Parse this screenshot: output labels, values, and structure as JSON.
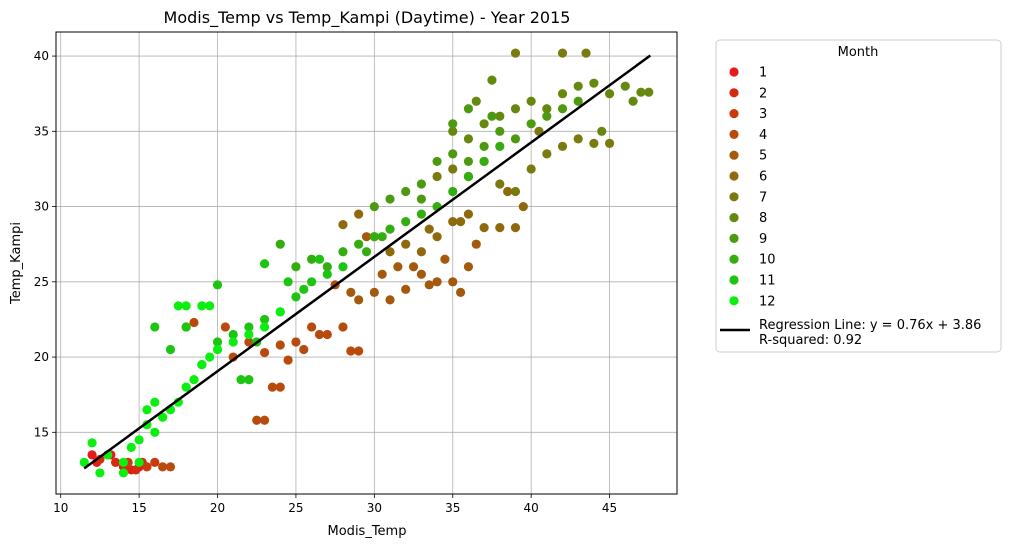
{
  "chart_data": {
    "type": "scatter",
    "title": "Modis_Temp vs Temp_Kampi (Daytime) - Year 2015",
    "xlabel": "Modis_Temp",
    "ylabel": "Temp_Kampi",
    "xlim": [
      9.7,
      49.3
    ],
    "ylim": [
      10.9,
      41.6
    ],
    "xticks": [
      10,
      15,
      20,
      25,
      30,
      35,
      40,
      45
    ],
    "yticks": [
      15,
      20,
      25,
      30,
      35,
      40
    ],
    "grid": true,
    "legend": {
      "title": "Month",
      "placement": "outside-right",
      "entries": [
        "1",
        "2",
        "3",
        "4",
        "5",
        "6",
        "7",
        "8",
        "9",
        "10",
        "11",
        "12"
      ],
      "colors": [
        "#e41a1c",
        "#d42b10",
        "#c93b0d",
        "#b84a0c",
        "#a45a0c",
        "#8f6a0d",
        "#7b7a0e",
        "#65890f",
        "#4d9a10",
        "#33ad10",
        "#1cc510",
        "#0aef10"
      ]
    },
    "regression": {
      "label": "Regression Line: y = 0.76x + 3.86\nR-squared: 0.92",
      "slope": 0.76,
      "intercept": 3.86,
      "x_range": [
        11.5,
        47.6
      ],
      "color": "#000000"
    },
    "series": [
      {
        "month": 1,
        "points": [
          [
            12.0,
            13.5
          ],
          [
            12.3,
            13.0
          ],
          [
            13.2,
            13.5
          ],
          [
            14.0,
            12.7
          ],
          [
            14.5,
            12.5
          ],
          [
            15.0,
            12.7
          ]
        ]
      },
      {
        "month": 2,
        "points": [
          [
            12.5,
            13.2
          ],
          [
            13.5,
            13.0
          ],
          [
            14.2,
            12.7
          ],
          [
            15.2,
            13.0
          ],
          [
            14.8,
            12.5
          ]
        ]
      },
      {
        "month": 3,
        "points": [
          [
            13.0,
            13.5
          ],
          [
            14.3,
            13.0
          ],
          [
            15.5,
            12.7
          ],
          [
            16.0,
            13.0
          ]
        ]
      },
      {
        "month": 4,
        "points": [
          [
            16.5,
            12.7
          ],
          [
            17.0,
            12.7
          ],
          [
            18.0,
            22.0
          ],
          [
            18.5,
            22.3
          ],
          [
            20.5,
            22.0
          ],
          [
            21.0,
            20.0
          ],
          [
            22.0,
            21.0
          ],
          [
            22.5,
            15.8
          ],
          [
            23.0,
            15.8
          ],
          [
            23.5,
            18.0
          ],
          [
            24.0,
            18.0
          ],
          [
            24.5,
            19.8
          ],
          [
            25.0,
            21.0
          ],
          [
            25.5,
            20.5
          ],
          [
            26.0,
            22.0
          ],
          [
            26.5,
            21.5
          ],
          [
            27.0,
            21.5
          ],
          [
            28.0,
            22.0
          ],
          [
            28.5,
            20.4
          ],
          [
            29.0,
            20.4
          ],
          [
            27.5,
            24.8
          ],
          [
            24.0,
            20.8
          ],
          [
            23.0,
            20.3
          ]
        ]
      },
      {
        "month": 5,
        "points": [
          [
            28.5,
            24.3
          ],
          [
            29.0,
            23.8
          ],
          [
            30.0,
            24.3
          ],
          [
            31.0,
            23.8
          ],
          [
            32.0,
            24.5
          ],
          [
            33.0,
            25.5
          ],
          [
            34.0,
            25.0
          ],
          [
            35.0,
            25.0
          ],
          [
            35.5,
            24.3
          ],
          [
            36.0,
            26.0
          ],
          [
            36.5,
            27.5
          ],
          [
            32.5,
            26.0
          ],
          [
            31.5,
            26.0
          ],
          [
            33.5,
            24.8
          ],
          [
            34.5,
            26.5
          ],
          [
            30.5,
            25.5
          ],
          [
            29.5,
            28.0
          ]
        ]
      },
      {
        "month": 6,
        "points": [
          [
            30.0,
            28.0
          ],
          [
            31.0,
            27.0
          ],
          [
            32.0,
            27.5
          ],
          [
            33.0,
            27.0
          ],
          [
            34.0,
            28.0
          ],
          [
            35.0,
            29.0
          ],
          [
            36.0,
            29.5
          ],
          [
            37.0,
            28.6
          ],
          [
            38.0,
            28.6
          ],
          [
            39.0,
            28.6
          ],
          [
            39.5,
            30.0
          ],
          [
            35.5,
            29.0
          ],
          [
            29.0,
            29.5
          ],
          [
            28.0,
            28.8
          ],
          [
            33.5,
            28.5
          ],
          [
            38.5,
            31.0
          ]
        ]
      },
      {
        "month": 7,
        "points": [
          [
            34.0,
            32.0
          ],
          [
            35.0,
            32.5
          ],
          [
            36.0,
            32.0
          ],
          [
            37.0,
            33.0
          ],
          [
            38.0,
            31.5
          ],
          [
            39.0,
            31.0
          ],
          [
            40.0,
            32.5
          ],
          [
            41.0,
            33.5
          ],
          [
            42.0,
            34.0
          ],
          [
            43.0,
            34.5
          ],
          [
            44.0,
            34.2
          ],
          [
            45.0,
            34.2
          ],
          [
            40.5,
            35.0
          ],
          [
            39.0,
            40.2
          ],
          [
            42.0,
            40.2
          ],
          [
            43.5,
            40.2
          ]
        ]
      },
      {
        "month": 8,
        "points": [
          [
            35.0,
            35.0
          ],
          [
            36.0,
            34.5
          ],
          [
            37.0,
            35.5
          ],
          [
            38.0,
            36.0
          ],
          [
            39.0,
            36.5
          ],
          [
            40.0,
            37.0
          ],
          [
            41.0,
            36.5
          ],
          [
            42.0,
            37.5
          ],
          [
            43.0,
            38.0
          ],
          [
            44.0,
            38.2
          ],
          [
            45.0,
            37.5
          ],
          [
            46.0,
            38.0
          ],
          [
            47.0,
            37.6
          ],
          [
            47.5,
            37.6
          ],
          [
            46.5,
            37.0
          ],
          [
            44.5,
            35.0
          ],
          [
            36.5,
            37.0
          ],
          [
            37.5,
            38.4
          ]
        ]
      },
      {
        "month": 9,
        "points": [
          [
            30.0,
            30.0
          ],
          [
            31.0,
            30.5
          ],
          [
            32.0,
            31.0
          ],
          [
            33.0,
            31.5
          ],
          [
            34.0,
            33.0
          ],
          [
            35.0,
            33.5
          ],
          [
            36.0,
            33.0
          ],
          [
            37.0,
            34.0
          ],
          [
            38.0,
            35.0
          ],
          [
            39.0,
            34.5
          ],
          [
            40.0,
            35.5
          ],
          [
            41.0,
            36.0
          ],
          [
            42.0,
            36.5
          ],
          [
            43.0,
            37.0
          ],
          [
            36.0,
            36.5
          ],
          [
            35.0,
            35.5
          ],
          [
            37.5,
            36.0
          ],
          [
            33.0,
            30.5
          ]
        ]
      },
      {
        "month": 10,
        "points": [
          [
            25.0,
            26.0
          ],
          [
            26.0,
            26.5
          ],
          [
            27.0,
            26.0
          ],
          [
            28.0,
            27.0
          ],
          [
            29.0,
            27.5
          ],
          [
            30.0,
            28.0
          ],
          [
            31.0,
            28.5
          ],
          [
            32.0,
            29.0
          ],
          [
            33.0,
            29.5
          ],
          [
            34.0,
            30.0
          ],
          [
            35.0,
            31.0
          ],
          [
            36.0,
            32.0
          ],
          [
            37.0,
            33.0
          ],
          [
            38.0,
            34.0
          ],
          [
            30.5,
            28.0
          ],
          [
            29.5,
            27.0
          ],
          [
            24.0,
            27.5
          ]
        ]
      },
      {
        "month": 11,
        "points": [
          [
            19.0,
            19.5
          ],
          [
            20.0,
            21.0
          ],
          [
            21.0,
            21.5
          ],
          [
            22.0,
            22.0
          ],
          [
            23.0,
            22.5
          ],
          [
            24.0,
            23.0
          ],
          [
            25.0,
            24.0
          ],
          [
            26.0,
            25.0
          ],
          [
            27.0,
            25.5
          ],
          [
            28.0,
            26.0
          ],
          [
            22.5,
            21.0
          ],
          [
            21.5,
            18.5
          ],
          [
            22.0,
            18.5
          ],
          [
            16.0,
            22.0
          ],
          [
            17.0,
            20.5
          ],
          [
            18.0,
            22.0
          ],
          [
            20.0,
            24.8
          ],
          [
            23.0,
            26.2
          ],
          [
            24.5,
            25.0
          ],
          [
            26.5,
            26.5
          ],
          [
            25.5,
            24.5
          ]
        ]
      },
      {
        "month": 12,
        "points": [
          [
            11.5,
            13.0
          ],
          [
            12.0,
            14.3
          ],
          [
            13.0,
            13.5
          ],
          [
            14.0,
            13.0
          ],
          [
            15.0,
            14.5
          ],
          [
            15.5,
            15.5
          ],
          [
            16.0,
            15.0
          ],
          [
            16.5,
            16.0
          ],
          [
            17.0,
            16.5
          ],
          [
            17.5,
            17.0
          ],
          [
            18.0,
            18.0
          ],
          [
            18.5,
            18.5
          ],
          [
            19.0,
            19.5
          ],
          [
            19.5,
            20.0
          ],
          [
            20.0,
            20.5
          ],
          [
            21.0,
            21.0
          ],
          [
            22.0,
            21.5
          ],
          [
            23.0,
            22.0
          ],
          [
            24.0,
            23.0
          ],
          [
            14.0,
            12.3
          ],
          [
            14.5,
            14.0
          ],
          [
            15.0,
            13.0
          ],
          [
            16.0,
            17.0
          ],
          [
            17.5,
            23.4
          ],
          [
            18.0,
            23.4
          ],
          [
            19.0,
            23.4
          ],
          [
            19.5,
            23.4
          ],
          [
            12.5,
            12.3
          ],
          [
            15.5,
            16.5
          ]
        ]
      }
    ]
  }
}
